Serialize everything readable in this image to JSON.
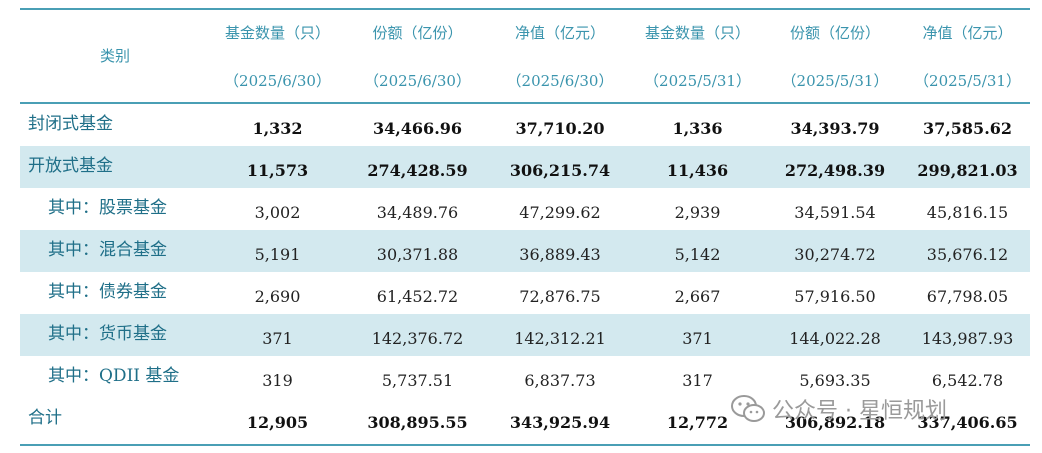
{
  "header": {
    "category": "类别",
    "columns": [
      {
        "title": "基金数量（只）",
        "date": "（2025/6/30）"
      },
      {
        "title": "份额（亿份）",
        "date": "（2025/6/30）"
      },
      {
        "title": "净值（亿元）",
        "date": "（2025/6/30）"
      },
      {
        "title": "基金数量（只）",
        "date": "（2025/5/31）"
      },
      {
        "title": "份额（亿份）",
        "date": "（2025/5/31）"
      },
      {
        "title": "净值（亿元）",
        "date": "（2025/5/31）"
      }
    ]
  },
  "rows": [
    {
      "label": "封闭式基金",
      "values": [
        "1,332",
        "34,466.96",
        "37,710.20",
        "1,336",
        "34,393.79",
        "37,585.62"
      ]
    },
    {
      "label": "开放式基金",
      "values": [
        "11,573",
        "274,428.59",
        "306,215.74",
        "11,436",
        "272,498.39",
        "299,821.03"
      ]
    },
    {
      "label": "其中：股票基金",
      "values": [
        "3,002",
        "34,489.76",
        "47,299.62",
        "2,939",
        "34,591.54",
        "45,816.15"
      ]
    },
    {
      "label": "其中：混合基金",
      "values": [
        "5,191",
        "30,371.88",
        "36,889.43",
        "5,142",
        "30,274.72",
        "35,676.12"
      ]
    },
    {
      "label": "其中：债券基金",
      "values": [
        "2,690",
        "61,452.72",
        "72,876.75",
        "2,667",
        "57,916.50",
        "67,798.05"
      ]
    },
    {
      "label": "其中：货币基金",
      "values": [
        "371",
        "142,376.72",
        "142,312.21",
        "371",
        "144,022.28",
        "143,987.93"
      ]
    },
    {
      "label": "其中：QDII 基金",
      "values": [
        "319",
        "5,737.51",
        "6,837.73",
        "317",
        "5,693.35",
        "6,542.78"
      ]
    },
    {
      "label": "合计",
      "values": [
        "12,905",
        "308,895.55",
        "343,925.94",
        "12,772",
        "306,892.18",
        "337,406.65"
      ]
    }
  ],
  "watermark": {
    "text": "公众号 · 星恒规划",
    "icon": "wechat-icon"
  }
}
